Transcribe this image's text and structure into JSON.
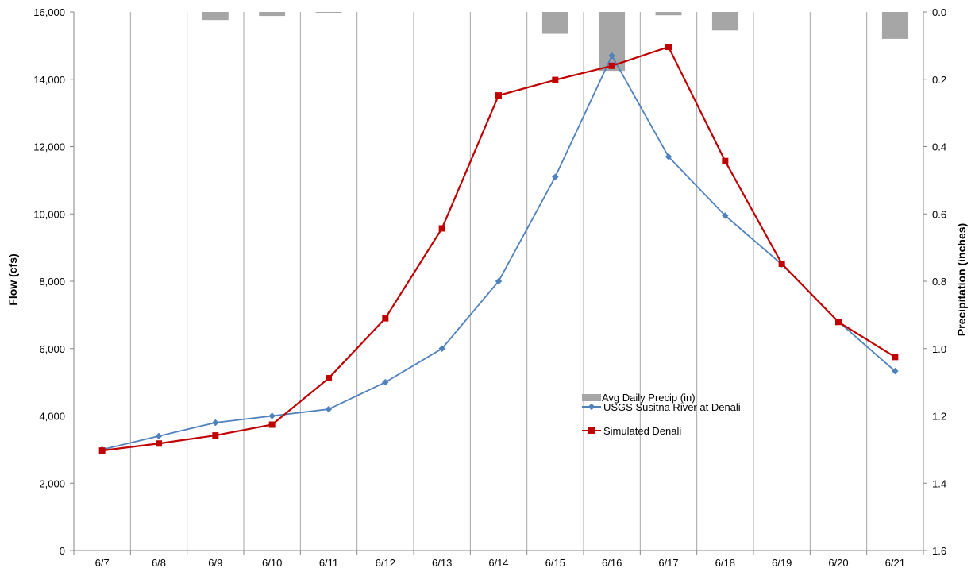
{
  "chart_data": {
    "type": "line",
    "categories": [
      "6/7",
      "6/8",
      "6/9",
      "6/10",
      "6/11",
      "6/12",
      "6/13",
      "6/14",
      "6/15",
      "6/16",
      "6/17",
      "6/18",
      "6/19",
      "6/20",
      "6/21"
    ],
    "series": [
      {
        "name": "Avg Daily Precip (in)",
        "type": "bar",
        "axis": "right",
        "color": "#a6a6a6",
        "values": [
          0,
          0,
          0.024,
          0.012,
          0.001,
          0,
          0,
          0,
          0.065,
          0.175,
          0.01,
          0.055,
          0,
          0,
          0.08
        ]
      },
      {
        "name": "USGS Susitna River at Denali",
        "type": "line",
        "axis": "left",
        "color": "#4f81bd",
        "marker": "diamond",
        "values": [
          3000,
          3400,
          3800,
          4000,
          4200,
          5000,
          6000,
          8000,
          11100,
          14700,
          11700,
          9950,
          8500,
          6800,
          5330
        ]
      },
      {
        "name": "Simulated Denali",
        "type": "line",
        "axis": "left",
        "color": "#c00000",
        "marker": "square",
        "values": [
          2970,
          3180,
          3420,
          3740,
          5120,
          6900,
          9570,
          13520,
          13980,
          14400,
          14960,
          11570,
          8520,
          6790,
          5750
        ]
      }
    ],
    "ylabel": "Flow (cfs)",
    "y2label": "Precipitation (inches)",
    "ylim": [
      0,
      16000
    ],
    "y2lim": [
      1.6,
      0.0
    ],
    "y_ticks": [
      "0",
      "2,000",
      "4,000",
      "6,000",
      "8,000",
      "10,000",
      "12,000",
      "14,000",
      "16,000"
    ],
    "y2_ticks": [
      "0.0",
      "0.2",
      "0.4",
      "0.6",
      "0.8",
      "1.0",
      "1.2",
      "1.4",
      "1.6"
    ],
    "grid": "vertical",
    "legend_position": "lower-right"
  }
}
